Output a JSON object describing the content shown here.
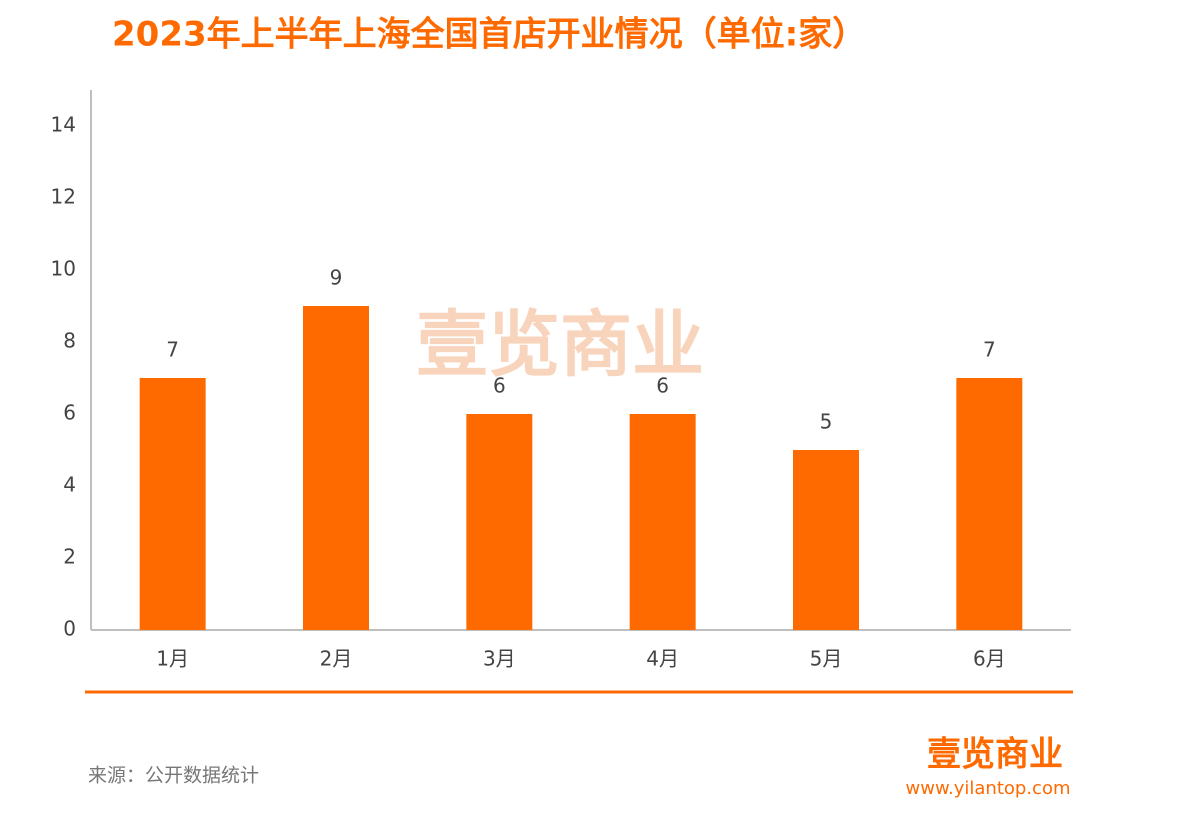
{
  "chart_data": {
    "type": "bar",
    "title": "2023年上半年上海全国首店开业情况（单位:家）",
    "categories": [
      "1月",
      "2月",
      "3月",
      "4月",
      "5月",
      "6月"
    ],
    "values": [
      7,
      9,
      6,
      6,
      5,
      7
    ],
    "color": "#ff6a00",
    "ylim": [
      0,
      15
    ],
    "yticks": [
      0,
      2,
      4,
      6,
      8,
      10,
      12,
      14
    ],
    "grid": false,
    "watermark": "壹览商业",
    "source": "来源：公开数据统计",
    "logo": "壹览商业",
    "website": "www.yilantop.com"
  }
}
